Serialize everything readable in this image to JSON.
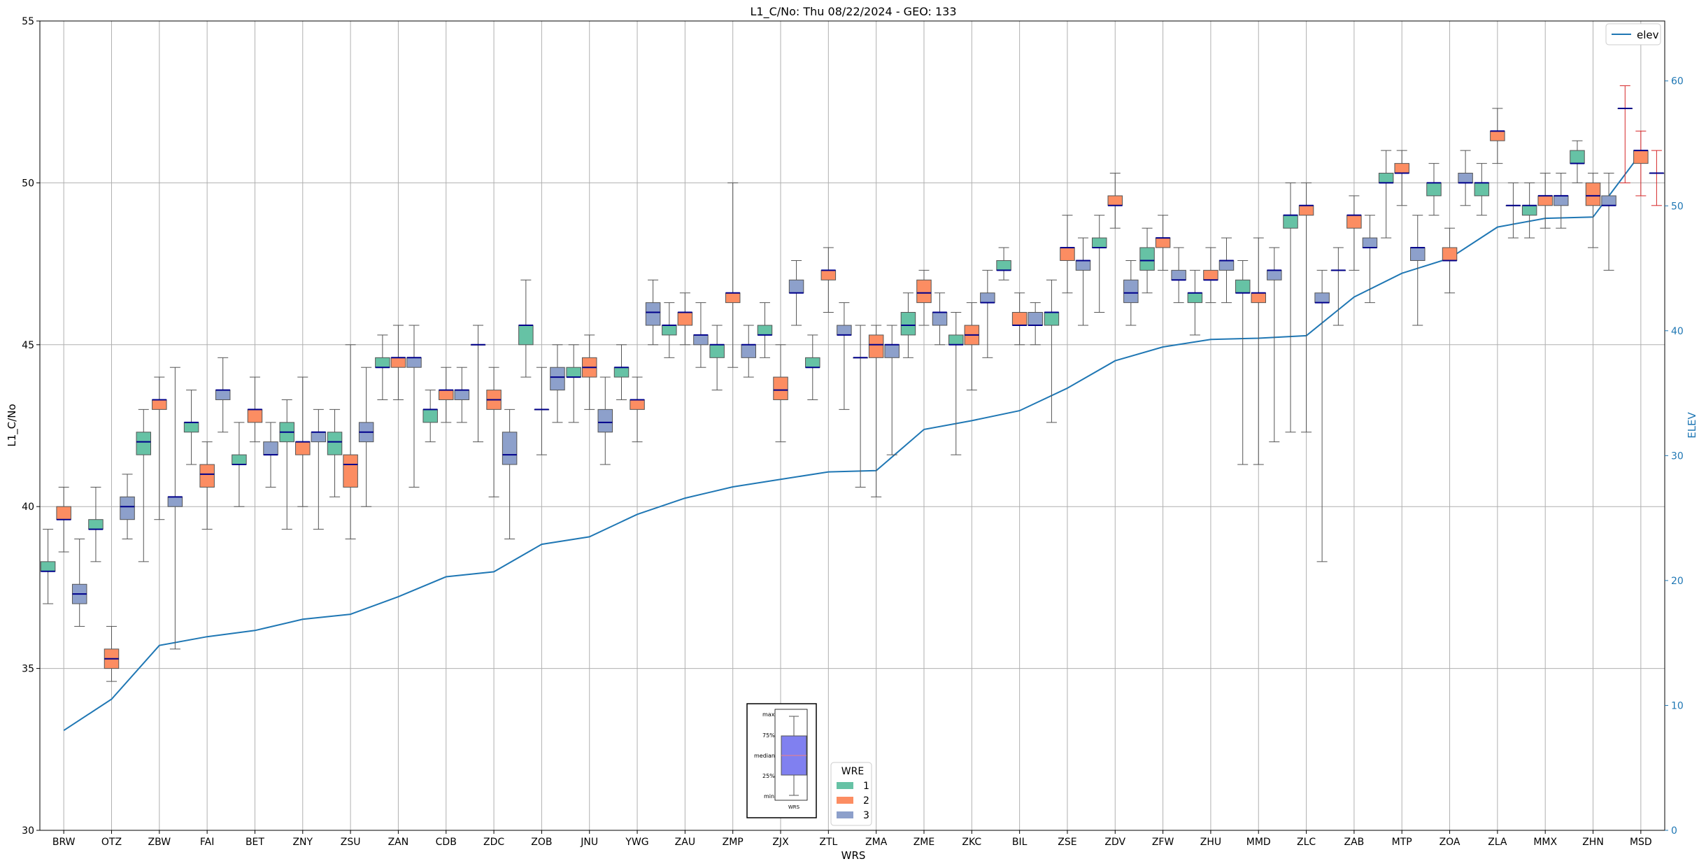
{
  "chart_data": {
    "type": "boxplot",
    "title": "L1_C/No: Thu 08/22/2024 - GEO: 133",
    "xlabel": "WRS",
    "ylabel": "L1_C/No",
    "y2label": "ELEV",
    "ylim": [
      30,
      55
    ],
    "y2lim": [
      0,
      64.8
    ],
    "yticks": [
      30,
      35,
      40,
      45,
      50,
      55
    ],
    "y2ticks": [
      0,
      10,
      20,
      30,
      40,
      50,
      60
    ],
    "grid": true,
    "legend_line": {
      "label": "elev",
      "color": "#1f77b4",
      "position": "top-right"
    },
    "legend_wre": {
      "title": "WRE",
      "position": "bottom-center",
      "items": [
        {
          "label": "1",
          "color": "#66c2a5"
        },
        {
          "label": "2",
          "color": "#fc8d62"
        },
        {
          "label": "3",
          "color": "#8da0cb"
        }
      ]
    },
    "inset": {
      "labels": [
        "max",
        "75%",
        "median",
        "25%",
        "min"
      ],
      "xlabel": "WRS",
      "color": "#8080f0"
    },
    "categories": [
      "BRW",
      "OTZ",
      "ZBW",
      "FAI",
      "BET",
      "ZNY",
      "ZSU",
      "ZAN",
      "CDB",
      "ZDC",
      "ZOB",
      "JNU",
      "YWG",
      "ZAU",
      "ZMP",
      "ZJX",
      "ZTL",
      "ZMA",
      "ZME",
      "ZKC",
      "BIL",
      "ZSE",
      "ZDV",
      "ZFW",
      "ZHU",
      "MMD",
      "ZLC",
      "ZAB",
      "MTP",
      "ZOA",
      "ZLA",
      "MMX",
      "ZHN",
      "MSD"
    ],
    "elev": [
      8,
      10.5,
      14.8,
      15.5,
      16,
      16.9,
      17.3,
      18.7,
      20.3,
      20.7,
      22.9,
      23.5,
      25.3,
      26.6,
      27.5,
      28.1,
      28.7,
      28.8,
      32.1,
      32.8,
      33.6,
      35.4,
      37.6,
      38.7,
      39.3,
      39.4,
      39.6,
      42.7,
      44.6,
      45.8,
      48.3,
      49,
      49.1,
      54.2
    ],
    "series": [
      {
        "name": "1",
        "color": "#66c2a5",
        "boxes": [
          {
            "cat": "BRW",
            "min": 37.0,
            "q1": 38.0,
            "med": 38.0,
            "q3": 38.3,
            "max": 39.3
          },
          {
            "cat": "OTZ",
            "min": 38.3,
            "q1": 39.3,
            "med": 39.3,
            "q3": 39.6,
            "max": 40.6
          },
          {
            "cat": "ZBW",
            "min": 38.3,
            "q1": 41.6,
            "med": 42.0,
            "q3": 42.3,
            "max": 43.0
          },
          {
            "cat": "FAI",
            "min": 41.3,
            "q1": 42.3,
            "med": 42.6,
            "q3": 42.6,
            "max": 43.6
          },
          {
            "cat": "BET",
            "min": 40.0,
            "q1": 41.3,
            "med": 41.3,
            "q3": 41.6,
            "max": 42.6
          },
          {
            "cat": "ZNY",
            "min": 39.3,
            "q1": 42.0,
            "med": 42.3,
            "q3": 42.6,
            "max": 43.3
          },
          {
            "cat": "ZSU",
            "min": 40.3,
            "q1": 41.6,
            "med": 42.0,
            "q3": 42.3,
            "max": 43.0
          },
          {
            "cat": "ZAN",
            "min": 43.3,
            "q1": 44.3,
            "med": 44.3,
            "q3": 44.6,
            "max": 45.3
          },
          {
            "cat": "CDB",
            "min": 42.0,
            "q1": 42.6,
            "med": 43.0,
            "q3": 43.0,
            "max": 43.6
          },
          {
            "cat": "ZDC",
            "min": 42.0,
            "q1": 45.0,
            "med": 45.0,
            "q3": 45.0,
            "max": 45.6
          },
          {
            "cat": "ZOB",
            "min": 44.0,
            "q1": 45.0,
            "med": 45.6,
            "q3": 45.6,
            "max": 47.0
          },
          {
            "cat": "JNU",
            "min": 42.6,
            "q1": 44.0,
            "med": 44.0,
            "q3": 44.3,
            "max": 45.0
          },
          {
            "cat": "YWG",
            "min": 43.3,
            "q1": 44.0,
            "med": 44.3,
            "q3": 44.3,
            "max": 45.0
          },
          {
            "cat": "ZAU",
            "min": 44.6,
            "q1": 45.3,
            "med": 45.6,
            "q3": 45.6,
            "max": 46.3
          },
          {
            "cat": "ZMP",
            "min": 43.6,
            "q1": 44.6,
            "med": 45.0,
            "q3": 45.0,
            "max": 45.6
          },
          {
            "cat": "ZJX",
            "min": 44.6,
            "q1": 45.3,
            "med": 45.3,
            "q3": 45.6,
            "max": 46.3
          },
          {
            "cat": "ZTL",
            "min": 43.3,
            "q1": 44.3,
            "med": 44.3,
            "q3": 44.6,
            "max": 45.3
          },
          {
            "cat": "ZMA",
            "min": 40.6,
            "q1": 44.6,
            "med": 44.6,
            "q3": 44.6,
            "max": 45.6
          },
          {
            "cat": "ZME",
            "min": 44.6,
            "q1": 45.3,
            "med": 45.6,
            "q3": 46.0,
            "max": 46.6
          },
          {
            "cat": "ZKC",
            "min": 41.6,
            "q1": 45.0,
            "med": 45.0,
            "q3": 45.3,
            "max": 46.0
          },
          {
            "cat": "BIL",
            "min": 47.0,
            "q1": 47.3,
            "med": 47.3,
            "q3": 47.6,
            "max": 48.0
          },
          {
            "cat": "ZSE",
            "min": 42.6,
            "q1": 45.6,
            "med": 46.0,
            "q3": 46.0,
            "max": 47.0
          },
          {
            "cat": "ZDV",
            "min": 46.0,
            "q1": 48.0,
            "med": 48.0,
            "q3": 48.3,
            "max": 49.0
          },
          {
            "cat": "ZFW",
            "min": 46.6,
            "q1": 47.3,
            "med": 47.6,
            "q3": 48.0,
            "max": 48.6
          },
          {
            "cat": "ZHU",
            "min": 45.3,
            "q1": 46.3,
            "med": 46.6,
            "q3": 46.6,
            "max": 47.3
          },
          {
            "cat": "MMD",
            "min": 41.3,
            "q1": 46.6,
            "med": 46.6,
            "q3": 47.0,
            "max": 47.6
          },
          {
            "cat": "ZLC",
            "min": 42.3,
            "q1": 48.6,
            "med": 49.0,
            "q3": 49.0,
            "max": 50.0
          },
          {
            "cat": "ZAB",
            "min": 45.6,
            "q1": 47.3,
            "med": 47.3,
            "q3": 47.3,
            "max": 48.0
          },
          {
            "cat": "MTP",
            "min": 48.3,
            "q1": 50.0,
            "med": 50.0,
            "q3": 50.3,
            "max": 51.0
          },
          {
            "cat": "ZOA",
            "min": 49.0,
            "q1": 49.6,
            "med": 50.0,
            "q3": 50.0,
            "max": 50.6
          },
          {
            "cat": "ZLA",
            "min": 49.0,
            "q1": 49.6,
            "med": 50.0,
            "q3": 50.0,
            "max": 50.6
          },
          {
            "cat": "MMX",
            "min": 48.3,
            "q1": 49.0,
            "med": 49.3,
            "q3": 49.3,
            "max": 50.0
          },
          {
            "cat": "ZHN",
            "min": 50.0,
            "q1": 50.6,
            "med": 50.6,
            "q3": 51.0,
            "max": 51.3
          },
          {
            "cat": "MSD",
            "min": 50.0,
            "q1": 52.3,
            "med": 52.3,
            "q3": 52.3,
            "max": 53.0
          }
        ]
      },
      {
        "name": "2",
        "color": "#fc8d62",
        "boxes": [
          {
            "cat": "BRW",
            "min": 38.6,
            "q1": 39.6,
            "med": 39.6,
            "q3": 40.0,
            "max": 40.6
          },
          {
            "cat": "OTZ",
            "min": 34.6,
            "q1": 35.0,
            "med": 35.3,
            "q3": 35.6,
            "max": 36.3
          },
          {
            "cat": "ZBW",
            "min": 39.6,
            "q1": 43.0,
            "med": 43.3,
            "q3": 43.3,
            "max": 44.0
          },
          {
            "cat": "FAI",
            "min": 39.3,
            "q1": 40.6,
            "med": 41.0,
            "q3": 41.3,
            "max": 42.0
          },
          {
            "cat": "BET",
            "min": 42.0,
            "q1": 42.6,
            "med": 43.0,
            "q3": 43.0,
            "max": 44.0
          },
          {
            "cat": "ZNY",
            "min": 40.0,
            "q1": 41.6,
            "med": 42.0,
            "q3": 42.0,
            "max": 44.0
          },
          {
            "cat": "ZSU",
            "min": 39.0,
            "q1": 40.6,
            "med": 41.3,
            "q3": 41.6,
            "max": 45.0
          },
          {
            "cat": "ZAN",
            "min": 43.3,
            "q1": 44.3,
            "med": 44.6,
            "q3": 44.6,
            "max": 45.6
          },
          {
            "cat": "CDB",
            "min": 42.6,
            "q1": 43.3,
            "med": 43.6,
            "q3": 43.6,
            "max": 44.3
          },
          {
            "cat": "ZDC",
            "min": 40.3,
            "q1": 43.0,
            "med": 43.3,
            "q3": 43.6,
            "max": 44.3
          },
          {
            "cat": "ZOB",
            "min": 41.6,
            "q1": 43.0,
            "med": 43.0,
            "q3": 43.0,
            "max": 44.3
          },
          {
            "cat": "JNU",
            "min": 43.0,
            "q1": 44.0,
            "med": 44.3,
            "q3": 44.6,
            "max": 45.3
          },
          {
            "cat": "YWG",
            "min": 42.0,
            "q1": 43.0,
            "med": 43.3,
            "q3": 43.3,
            "max": 44.0
          },
          {
            "cat": "ZAU",
            "min": 45.0,
            "q1": 45.6,
            "med": 46.0,
            "q3": 46.0,
            "max": 46.6
          },
          {
            "cat": "ZMP",
            "min": 44.3,
            "q1": 46.3,
            "med": 46.6,
            "q3": 46.6,
            "max": 50.0
          },
          {
            "cat": "ZJX",
            "min": 42.0,
            "q1": 43.3,
            "med": 43.6,
            "q3": 44.0,
            "max": 45.0
          },
          {
            "cat": "ZTL",
            "min": 46.0,
            "q1": 47.0,
            "med": 47.3,
            "q3": 47.3,
            "max": 48.0
          },
          {
            "cat": "ZMA",
            "min": 40.3,
            "q1": 44.6,
            "med": 45.0,
            "q3": 45.3,
            "max": 45.6
          },
          {
            "cat": "ZME",
            "min": 45.6,
            "q1": 46.3,
            "med": 46.6,
            "q3": 47.0,
            "max": 47.3
          },
          {
            "cat": "ZKC",
            "min": 43.6,
            "q1": 45.0,
            "med": 45.3,
            "q3": 45.6,
            "max": 46.3
          },
          {
            "cat": "BIL",
            "min": 45.0,
            "q1": 45.6,
            "med": 45.6,
            "q3": 46.0,
            "max": 46.6
          },
          {
            "cat": "ZSE",
            "min": 46.6,
            "q1": 47.6,
            "med": 48.0,
            "q3": 48.0,
            "max": 49.0
          },
          {
            "cat": "ZDV",
            "min": 48.6,
            "q1": 49.3,
            "med": 49.3,
            "q3": 49.6,
            "max": 50.3
          },
          {
            "cat": "ZFW",
            "min": 47.3,
            "q1": 48.0,
            "med": 48.3,
            "q3": 48.3,
            "max": 49.0
          },
          {
            "cat": "ZHU",
            "min": 46.3,
            "q1": 47.0,
            "med": 47.0,
            "q3": 47.3,
            "max": 48.0
          },
          {
            "cat": "MMD",
            "min": 41.3,
            "q1": 46.3,
            "med": 46.6,
            "q3": 46.6,
            "max": 48.3
          },
          {
            "cat": "ZLC",
            "min": 42.3,
            "q1": 49.0,
            "med": 49.3,
            "q3": 49.3,
            "max": 50.0
          },
          {
            "cat": "ZAB",
            "min": 47.3,
            "q1": 48.6,
            "med": 49.0,
            "q3": 49.0,
            "max": 49.6
          },
          {
            "cat": "MTP",
            "min": 49.3,
            "q1": 50.3,
            "med": 50.3,
            "q3": 50.6,
            "max": 51.0
          },
          {
            "cat": "ZOA",
            "min": 46.6,
            "q1": 47.6,
            "med": 47.6,
            "q3": 48.0,
            "max": 48.6
          },
          {
            "cat": "ZLA",
            "min": 50.6,
            "q1": 51.3,
            "med": 51.6,
            "q3": 51.6,
            "max": 52.3
          },
          {
            "cat": "MMX",
            "min": 48.6,
            "q1": 49.3,
            "med": 49.6,
            "q3": 49.6,
            "max": 50.3
          },
          {
            "cat": "ZHN",
            "min": 48.0,
            "q1": 49.3,
            "med": 49.6,
            "q3": 50.0,
            "max": 50.3
          },
          {
            "cat": "MSD",
            "min": 49.6,
            "q1": 50.6,
            "med": 51.0,
            "q3": 51.0,
            "max": 51.6
          }
        ]
      },
      {
        "name": "3",
        "color": "#8da0cb",
        "boxes": [
          {
            "cat": "BRW",
            "min": 36.3,
            "q1": 37.0,
            "med": 37.3,
            "q3": 37.6,
            "max": 39.0
          },
          {
            "cat": "OTZ",
            "min": 39.0,
            "q1": 39.6,
            "med": 40.0,
            "q3": 40.3,
            "max": 41.0
          },
          {
            "cat": "ZBW",
            "min": 35.6,
            "q1": 40.0,
            "med": 40.3,
            "q3": 40.3,
            "max": 44.3
          },
          {
            "cat": "FAI",
            "min": 42.3,
            "q1": 43.3,
            "med": 43.6,
            "q3": 43.6,
            "max": 44.6
          },
          {
            "cat": "BET",
            "min": 40.6,
            "q1": 41.6,
            "med": 41.6,
            "q3": 42.0,
            "max": 42.6
          },
          {
            "cat": "ZNY",
            "min": 39.3,
            "q1": 42.0,
            "med": 42.3,
            "q3": 42.3,
            "max": 43.0
          },
          {
            "cat": "ZSU",
            "min": 40.0,
            "q1": 42.0,
            "med": 42.3,
            "q3": 42.6,
            "max": 44.3
          },
          {
            "cat": "ZAN",
            "min": 40.6,
            "q1": 44.3,
            "med": 44.6,
            "q3": 44.6,
            "max": 45.6
          },
          {
            "cat": "CDB",
            "min": 42.6,
            "q1": 43.3,
            "med": 43.6,
            "q3": 43.6,
            "max": 44.3
          },
          {
            "cat": "ZDC",
            "min": 39.0,
            "q1": 41.3,
            "med": 41.6,
            "q3": 42.3,
            "max": 43.0
          },
          {
            "cat": "ZOB",
            "min": 42.6,
            "q1": 43.6,
            "med": 44.0,
            "q3": 44.3,
            "max": 45.0
          },
          {
            "cat": "JNU",
            "min": 41.3,
            "q1": 42.3,
            "med": 42.6,
            "q3": 43.0,
            "max": 44.0
          },
          {
            "cat": "YWG",
            "min": 45.0,
            "q1": 45.6,
            "med": 46.0,
            "q3": 46.3,
            "max": 47.0
          },
          {
            "cat": "ZAU",
            "min": 44.3,
            "q1": 45.0,
            "med": 45.3,
            "q3": 45.3,
            "max": 46.3
          },
          {
            "cat": "ZMP",
            "min": 44.0,
            "q1": 44.6,
            "med": 45.0,
            "q3": 45.0,
            "max": 45.6
          },
          {
            "cat": "ZJX",
            "min": 45.6,
            "q1": 46.6,
            "med": 46.6,
            "q3": 47.0,
            "max": 47.6
          },
          {
            "cat": "ZTL",
            "min": 43.0,
            "q1": 45.3,
            "med": 45.3,
            "q3": 45.6,
            "max": 46.3
          },
          {
            "cat": "ZMA",
            "min": 41.6,
            "q1": 44.6,
            "med": 45.0,
            "q3": 45.0,
            "max": 45.6
          },
          {
            "cat": "ZME",
            "min": 45.0,
            "q1": 45.6,
            "med": 46.0,
            "q3": 46.0,
            "max": 46.6
          },
          {
            "cat": "ZKC",
            "min": 44.6,
            "q1": 46.3,
            "med": 46.3,
            "q3": 46.6,
            "max": 47.3
          },
          {
            "cat": "BIL",
            "min": 45.0,
            "q1": 45.6,
            "med": 45.6,
            "q3": 46.0,
            "max": 46.3
          },
          {
            "cat": "ZSE",
            "min": 45.6,
            "q1": 47.3,
            "med": 47.6,
            "q3": 47.6,
            "max": 48.3
          },
          {
            "cat": "ZDV",
            "min": 45.6,
            "q1": 46.3,
            "med": 46.6,
            "q3": 47.0,
            "max": 47.6
          },
          {
            "cat": "ZFW",
            "min": 46.3,
            "q1": 47.0,
            "med": 47.0,
            "q3": 47.3,
            "max": 48.0
          },
          {
            "cat": "ZHU",
            "min": 46.3,
            "q1": 47.3,
            "med": 47.6,
            "q3": 47.6,
            "max": 48.3
          },
          {
            "cat": "MMD",
            "min": 42.0,
            "q1": 47.0,
            "med": 47.3,
            "q3": 47.3,
            "max": 48.0
          },
          {
            "cat": "ZLC",
            "min": 38.3,
            "q1": 46.3,
            "med": 46.3,
            "q3": 46.6,
            "max": 47.3
          },
          {
            "cat": "ZAB",
            "min": 46.3,
            "q1": 48.0,
            "med": 48.0,
            "q3": 48.3,
            "max": 49.0
          },
          {
            "cat": "MTP",
            "min": 45.6,
            "q1": 47.6,
            "med": 48.0,
            "q3": 48.0,
            "max": 49.0
          },
          {
            "cat": "ZOA",
            "min": 49.3,
            "q1": 50.0,
            "med": 50.0,
            "q3": 50.3,
            "max": 51.0
          },
          {
            "cat": "ZLA",
            "min": 48.3,
            "q1": 49.3,
            "med": 49.3,
            "q3": 49.3,
            "max": 50.0
          },
          {
            "cat": "MMX",
            "min": 48.6,
            "q1": 49.3,
            "med": 49.6,
            "q3": 49.6,
            "max": 50.3
          },
          {
            "cat": "ZHN",
            "min": 47.3,
            "q1": 49.3,
            "med": 49.3,
            "q3": 49.6,
            "max": 50.3
          },
          {
            "cat": "MSD",
            "min": 49.3,
            "q1": 50.3,
            "med": 50.3,
            "q3": 50.3,
            "max": 51.0
          }
        ]
      }
    ]
  }
}
